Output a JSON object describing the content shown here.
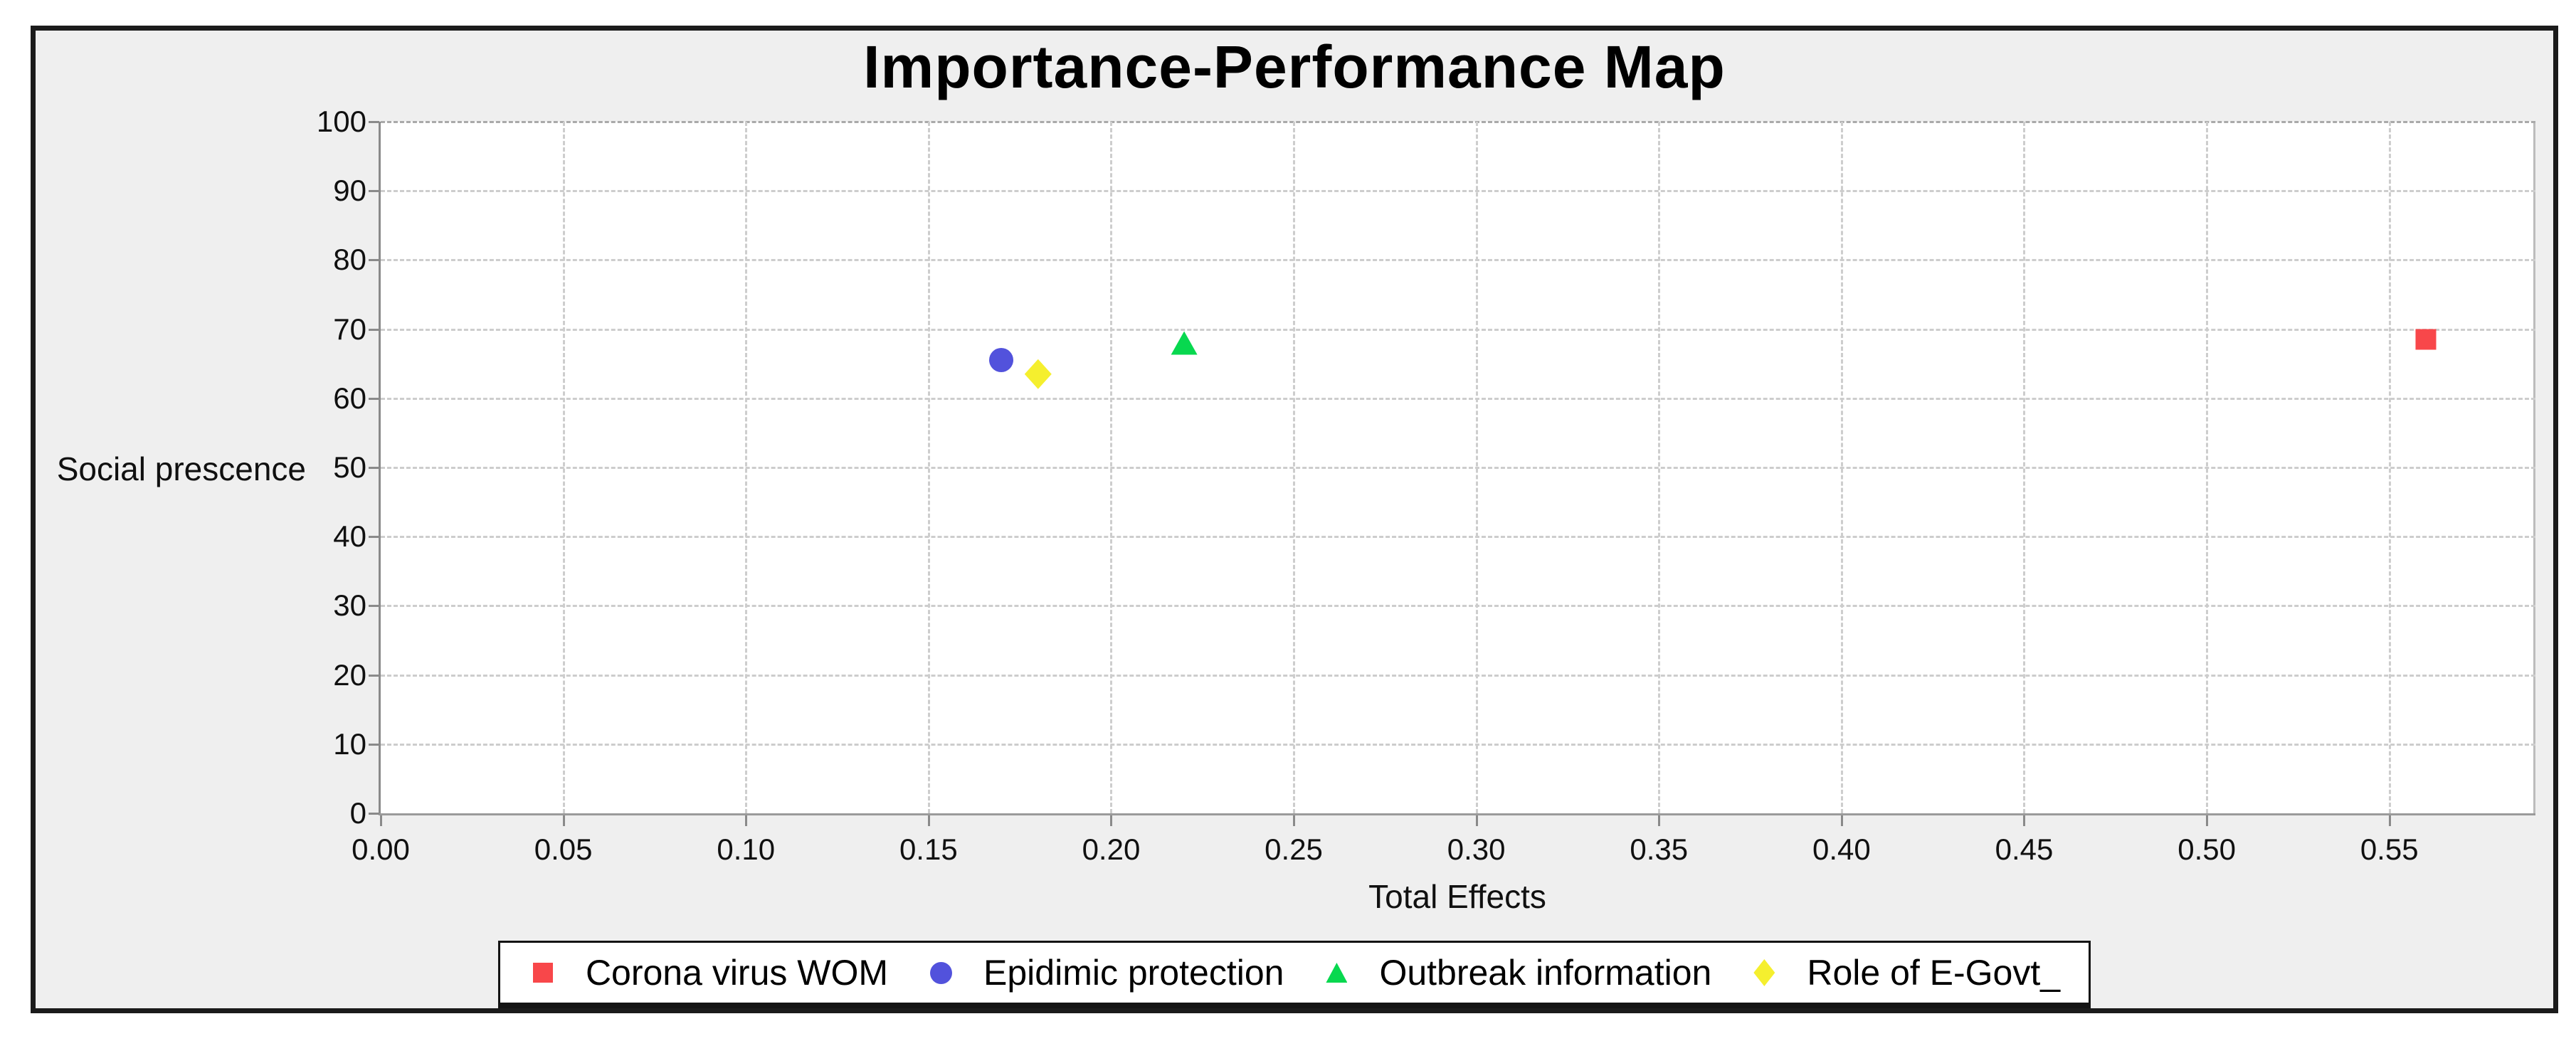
{
  "chart_data": {
    "type": "scatter",
    "title": "Importance-Performance Map",
    "xlabel": "Total Effects",
    "ylabel": "Social prescence",
    "xlim": [
      0,
      0.59
    ],
    "ylim": [
      0,
      100
    ],
    "x_ticks": [
      0.0,
      0.05,
      0.1,
      0.15,
      0.2,
      0.25,
      0.3,
      0.35,
      0.4,
      0.45,
      0.5,
      0.55
    ],
    "x_tick_labels": [
      "0.00",
      "0.05",
      "0.10",
      "0.15",
      "0.20",
      "0.25",
      "0.30",
      "0.35",
      "0.40",
      "0.45",
      "0.50",
      "0.55"
    ],
    "y_ticks": [
      0,
      10,
      20,
      30,
      40,
      50,
      60,
      70,
      80,
      90,
      100
    ],
    "y_tick_labels": [
      "0",
      "10",
      "20",
      "30",
      "40",
      "50",
      "60",
      "70",
      "80",
      "90",
      "100"
    ],
    "grid": true,
    "legend_position": "bottom",
    "series": [
      {
        "name": "Corona virus WOM",
        "marker": "square",
        "color": "#f8474a",
        "points": [
          {
            "x": 0.56,
            "y": 68.5
          }
        ]
      },
      {
        "name": "Epidimic protection",
        "marker": "circle",
        "color": "#5252dc",
        "points": [
          {
            "x": 0.17,
            "y": 65.5
          }
        ]
      },
      {
        "name": "Outbreak information",
        "marker": "triangle",
        "color": "#08d84f",
        "points": [
          {
            "x": 0.22,
            "y": 68.0
          }
        ]
      },
      {
        "name": "Role of E-Govt_",
        "marker": "diamond",
        "color": "#f5ef2e",
        "points": [
          {
            "x": 0.18,
            "y": 63.5
          }
        ]
      }
    ],
    "colors": {
      "panel_background": "#efefef",
      "plot_background": "#ffffff",
      "panel_border": "#1b1b1b",
      "grid": "#cdcdcd",
      "axis": "#8a8a8a",
      "text": "#101010"
    }
  }
}
